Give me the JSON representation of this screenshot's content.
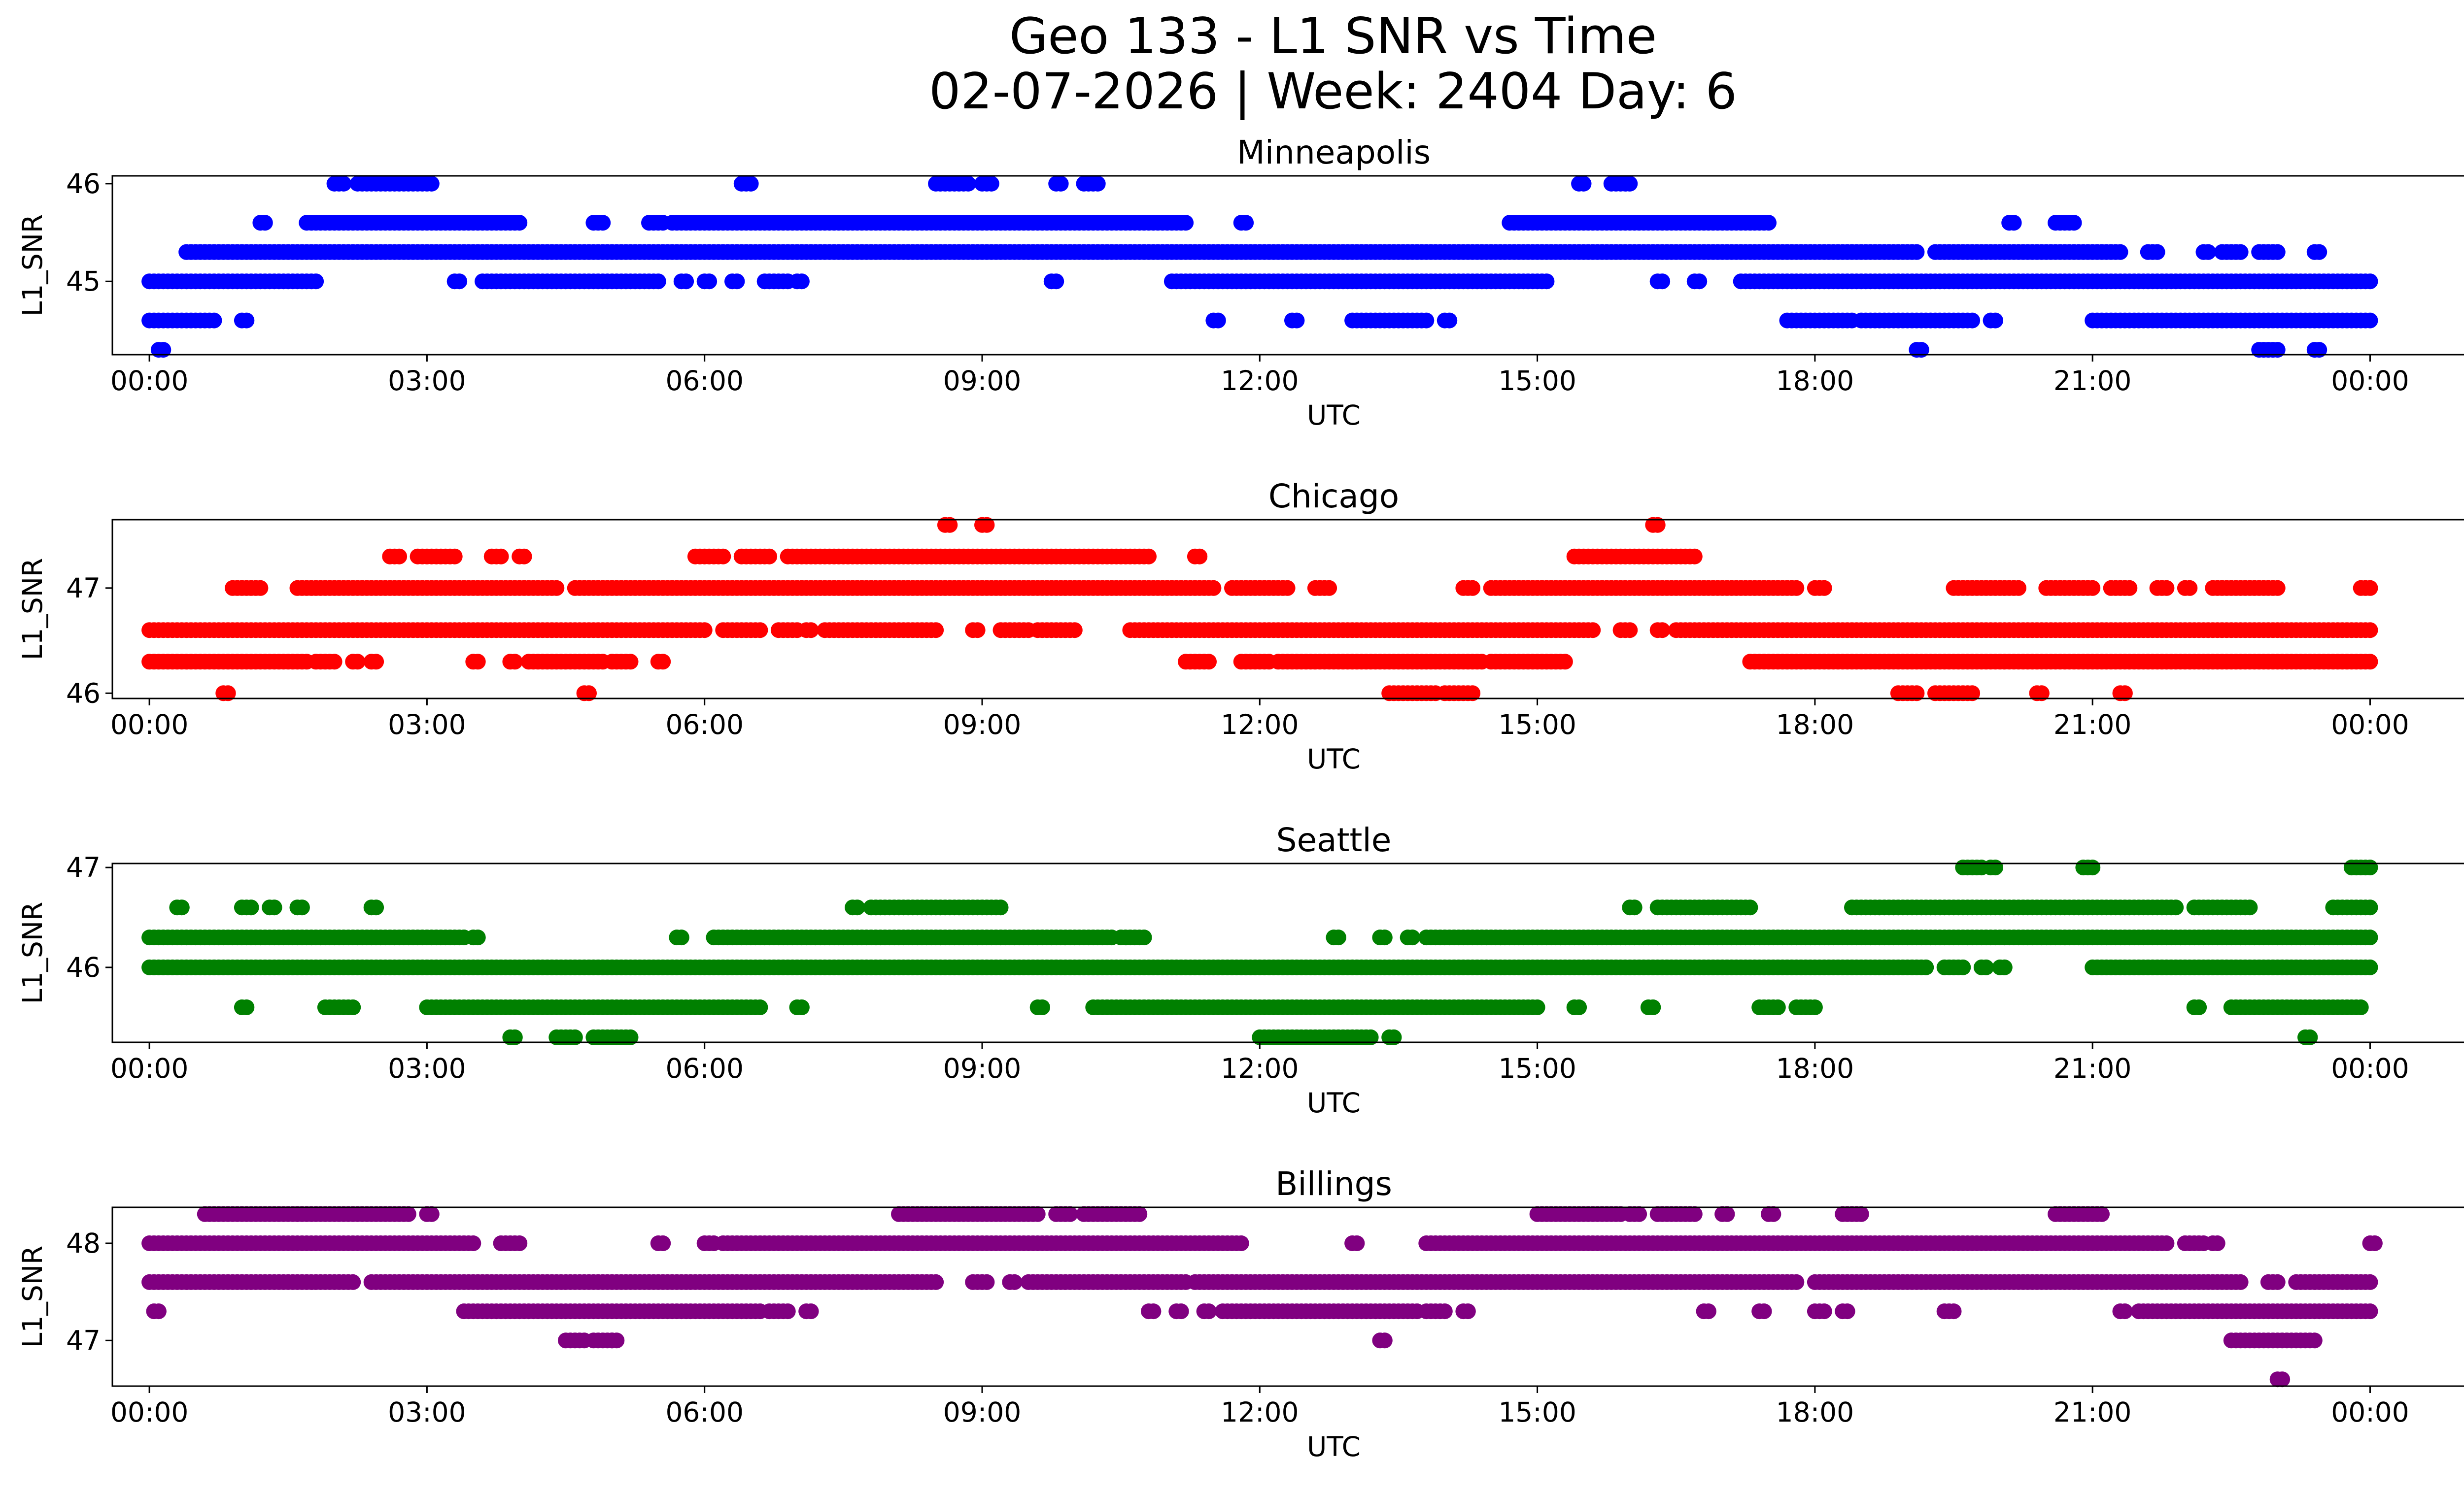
{
  "figure": {
    "title_line1": "Geo 133 - L1 SNR vs Time",
    "title_line2": "02-07-2026 | Week: 2404 Day: 6"
  },
  "x_axis": {
    "label": "UTC",
    "range_hours": [
      -0.4,
      26.0
    ],
    "ticks": [
      {
        "hour": 0,
        "label": "00:00"
      },
      {
        "hour": 3,
        "label": "03:00"
      },
      {
        "hour": 6,
        "label": "06:00"
      },
      {
        "hour": 9,
        "label": "09:00"
      },
      {
        "hour": 12,
        "label": "12:00"
      },
      {
        "hour": 15,
        "label": "15:00"
      },
      {
        "hour": 18,
        "label": "18:00"
      },
      {
        "hour": 21,
        "label": "21:00"
      },
      {
        "hour": 24,
        "label": "00:00"
      }
    ]
  },
  "chart_data": [
    {
      "type": "scatter",
      "title": "Minneapolis",
      "color": "#0000ff",
      "xlabel": "UTC",
      "ylabel": "L1_SNR",
      "ylim": [
        44.25,
        46.08
      ],
      "yticks": [
        {
          "value": 45,
          "label": "45"
        },
        {
          "value": 46,
          "label": "46"
        }
      ],
      "levels": [
        {
          "y": 46.0,
          "segments": [
            [
              2.0,
              2.1
            ],
            [
              2.25,
              3.05
            ],
            [
              6.4,
              6.5
            ],
            [
              8.5,
              8.85
            ],
            [
              9.0,
              9.1
            ],
            [
              9.8,
              9.85
            ],
            [
              10.1,
              10.25
            ],
            [
              15.45,
              15.5
            ],
            [
              15.8,
              16.0
            ]
          ]
        },
        {
          "y": 45.6,
          "segments": [
            [
              1.2,
              1.25
            ],
            [
              1.7,
              4.0
            ],
            [
              4.8,
              4.9
            ],
            [
              5.4,
              5.55
            ],
            [
              5.65,
              11.2
            ],
            [
              11.8,
              11.85
            ],
            [
              14.7,
              17.5
            ],
            [
              20.1,
              20.15
            ],
            [
              20.6,
              20.8
            ]
          ]
        },
        {
          "y": 45.3,
          "segments": [
            [
              0.4,
              19.1
            ],
            [
              19.3,
              21.3
            ],
            [
              21.6,
              21.7
            ],
            [
              22.2,
              22.25
            ],
            [
              22.4,
              22.6
            ],
            [
              22.8,
              23.0
            ],
            [
              23.4,
              23.45
            ]
          ]
        },
        {
          "y": 45.0,
          "segments": [
            [
              0.0,
              1.8
            ],
            [
              3.3,
              3.35
            ],
            [
              3.6,
              5.5
            ],
            [
              5.75,
              5.8
            ],
            [
              6.0,
              6.05
            ],
            [
              6.3,
              6.35
            ],
            [
              6.65,
              6.9
            ],
            [
              7.0,
              7.05
            ],
            [
              9.75,
              9.8
            ],
            [
              11.05,
              15.1
            ],
            [
              16.3,
              16.35
            ],
            [
              16.7,
              16.75
            ],
            [
              17.2,
              24.0
            ]
          ]
        },
        {
          "y": 44.6,
          "segments": [
            [
              0.0,
              0.7
            ],
            [
              1.0,
              1.05
            ],
            [
              11.5,
              11.55
            ],
            [
              12.35,
              12.4
            ],
            [
              13.0,
              13.8
            ],
            [
              14.0,
              14.05
            ],
            [
              17.7,
              18.4
            ],
            [
              18.5,
              19.7
            ],
            [
              19.9,
              19.95
            ],
            [
              21.0,
              24.0
            ]
          ]
        },
        {
          "y": 44.3,
          "segments": [
            [
              0.1,
              0.15
            ],
            [
              19.1,
              19.15
            ],
            [
              22.8,
              23.0
            ],
            [
              23.4,
              23.45
            ]
          ]
        }
      ]
    },
    {
      "type": "scatter",
      "title": "Chicago",
      "color": "#ff0000",
      "xlabel": "UTC",
      "ylabel": "L1_SNR",
      "ylim": [
        45.95,
        47.65
      ],
      "yticks": [
        {
          "value": 46,
          "label": "46"
        },
        {
          "value": 47,
          "label": "47"
        }
      ],
      "levels": [
        {
          "y": 47.6,
          "segments": [
            [
              8.6,
              8.65
            ],
            [
              9.0,
              9.05
            ],
            [
              16.25,
              16.3
            ]
          ]
        },
        {
          "y": 47.3,
          "segments": [
            [
              2.6,
              2.7
            ],
            [
              2.9,
              3.3
            ],
            [
              3.7,
              3.8
            ],
            [
              4.0,
              4.05
            ],
            [
              5.9,
              6.2
            ],
            [
              6.4,
              6.7
            ],
            [
              6.9,
              10.8
            ],
            [
              11.3,
              11.35
            ],
            [
              15.4,
              16.7
            ]
          ]
        },
        {
          "y": 47.0,
          "segments": [
            [
              0.9,
              1.2
            ],
            [
              1.6,
              4.4
            ],
            [
              4.6,
              11.5
            ],
            [
              11.7,
              12.3
            ],
            [
              12.6,
              12.75
            ],
            [
              14.2,
              14.3
            ],
            [
              14.5,
              17.8
            ],
            [
              18.0,
              18.1
            ],
            [
              19.5,
              20.2
            ],
            [
              20.5,
              21.0
            ],
            [
              21.2,
              21.4
            ],
            [
              21.7,
              21.8
            ],
            [
              22.0,
              22.05
            ],
            [
              22.3,
              23.0
            ],
            [
              23.9,
              24.0
            ]
          ]
        },
        {
          "y": 46.6,
          "segments": [
            [
              0.0,
              6.0
            ],
            [
              6.2,
              6.6
            ],
            [
              6.8,
              7.0
            ],
            [
              7.1,
              7.15
            ],
            [
              7.3,
              8.5
            ],
            [
              8.9,
              8.95
            ],
            [
              9.2,
              9.5
            ],
            [
              9.6,
              10.0
            ],
            [
              10.6,
              15.6
            ],
            [
              15.9,
              16.0
            ],
            [
              16.3,
              16.35
            ],
            [
              16.5,
              24.0
            ]
          ]
        },
        {
          "y": 46.3,
          "segments": [
            [
              0.0,
              1.7
            ],
            [
              1.8,
              2.0
            ],
            [
              2.2,
              2.25
            ],
            [
              2.4,
              2.45
            ],
            [
              3.5,
              3.55
            ],
            [
              3.9,
              3.95
            ],
            [
              4.1,
              4.9
            ],
            [
              5.0,
              5.2
            ],
            [
              5.5,
              5.55
            ],
            [
              11.2,
              11.45
            ],
            [
              11.8,
              12.1
            ],
            [
              12.2,
              14.4
            ],
            [
              14.5,
              15.3
            ],
            [
              17.3,
              24.0
            ]
          ]
        },
        {
          "y": 46.0,
          "segments": [
            [
              0.8,
              0.85
            ],
            [
              4.7,
              4.75
            ],
            [
              13.4,
              13.9
            ],
            [
              14.0,
              14.3
            ],
            [
              18.9,
              19.1
            ],
            [
              19.3,
              19.7
            ],
            [
              20.4,
              20.45
            ],
            [
              21.3,
              21.35
            ]
          ]
        }
      ]
    },
    {
      "type": "scatter",
      "title": "Seattle",
      "color": "#008000",
      "xlabel": "UTC",
      "ylabel": "L1_SNR",
      "ylim": [
        45.25,
        47.04
      ],
      "yticks": [
        {
          "value": 46,
          "label": "46"
        },
        {
          "value": 47,
          "label": "47"
        }
      ],
      "levels": [
        {
          "y": 47.0,
          "segments": [
            [
              19.6,
              19.8
            ],
            [
              19.9,
              19.95
            ],
            [
              20.9,
              21.0
            ],
            [
              23.8,
              24.0
            ]
          ]
        },
        {
          "y": 46.6,
          "segments": [
            [
              0.3,
              0.35
            ],
            [
              1.0,
              1.1
            ],
            [
              1.3,
              1.35
            ],
            [
              1.6,
              1.65
            ],
            [
              2.4,
              2.45
            ],
            [
              7.6,
              7.65
            ],
            [
              7.8,
              9.2
            ],
            [
              16.0,
              16.05
            ],
            [
              16.3,
              17.3
            ],
            [
              18.4,
              21.9
            ],
            [
              22.1,
              22.7
            ],
            [
              23.6,
              24.0
            ]
          ]
        },
        {
          "y": 46.3,
          "segments": [
            [
              0.0,
              3.4
            ],
            [
              3.5,
              3.55
            ],
            [
              5.7,
              5.75
            ],
            [
              6.1,
              10.4
            ],
            [
              10.5,
              10.75
            ],
            [
              12.8,
              12.85
            ],
            [
              13.3,
              13.35
            ],
            [
              13.6,
              13.65
            ],
            [
              13.8,
              24.0
            ]
          ]
        },
        {
          "y": 46.0,
          "segments": [
            [
              0.0,
              19.2
            ],
            [
              19.4,
              19.6
            ],
            [
              19.8,
              19.85
            ],
            [
              20.0,
              20.05
            ],
            [
              21.0,
              24.0
            ]
          ]
        },
        {
          "y": 45.6,
          "segments": [
            [
              1.0,
              1.05
            ],
            [
              1.9,
              2.2
            ],
            [
              3.0,
              6.6
            ],
            [
              7.0,
              7.05
            ],
            [
              9.6,
              9.65
            ],
            [
              10.2,
              15.0
            ],
            [
              15.4,
              15.45
            ],
            [
              16.2,
              16.25
            ],
            [
              17.4,
              17.6
            ],
            [
              17.8,
              18.0
            ],
            [
              22.1,
              22.15
            ],
            [
              22.5,
              23.9
            ]
          ]
        },
        {
          "y": 45.3,
          "segments": [
            [
              3.9,
              3.95
            ],
            [
              4.4,
              4.6
            ],
            [
              4.8,
              5.2
            ],
            [
              12.0,
              13.2
            ],
            [
              13.4,
              13.45
            ],
            [
              23.3,
              23.35
            ]
          ]
        }
      ]
    },
    {
      "type": "scatter",
      "title": "Billings",
      "color": "#800080",
      "xlabel": "UTC",
      "ylabel": "L1_SNR",
      "ylim": [
        46.53,
        48.37
      ],
      "yticks": [
        {
          "value": 47,
          "label": "47"
        },
        {
          "value": 48,
          "label": "48"
        }
      ],
      "levels": [
        {
          "y": 48.3,
          "segments": [
            [
              0.6,
              1.6
            ],
            [
              1.6,
              2.8
            ],
            [
              3.0,
              3.05
            ],
            [
              8.1,
              9.6
            ],
            [
              9.8,
              9.95
            ],
            [
              10.1,
              10.7
            ],
            [
              15.0,
              15.9
            ],
            [
              16.0,
              16.1
            ],
            [
              16.3,
              16.7
            ],
            [
              17.0,
              17.05
            ],
            [
              17.5,
              17.55
            ],
            [
              18.3,
              18.5
            ],
            [
              20.6,
              21.1
            ]
          ]
        },
        {
          "y": 48.0,
          "segments": [
            [
              0.0,
              3.5
            ],
            [
              3.8,
              4.0
            ],
            [
              5.5,
              5.55
            ],
            [
              6.0,
              6.1
            ],
            [
              6.2,
              11.8
            ],
            [
              13.0,
              13.05
            ],
            [
              13.8,
              21.8
            ],
            [
              22.0,
              22.2
            ],
            [
              22.3,
              22.35
            ],
            [
              24.0,
              24.05
            ]
          ]
        },
        {
          "y": 47.6,
          "segments": [
            [
              0.0,
              2.2
            ],
            [
              2.4,
              8.5
            ],
            [
              8.9,
              9.05
            ],
            [
              9.3,
              9.35
            ],
            [
              9.5,
              11.2
            ],
            [
              11.3,
              17.8
            ],
            [
              18.0,
              22.6
            ],
            [
              22.9,
              23.0
            ],
            [
              23.2,
              24.0
            ]
          ]
        },
        {
          "y": 47.3,
          "segments": [
            [
              0.05,
              0.1
            ],
            [
              3.4,
              6.6
            ],
            [
              6.7,
              6.9
            ],
            [
              7.1,
              7.15
            ],
            [
              10.8,
              10.85
            ],
            [
              11.1,
              11.15
            ],
            [
              11.4,
              11.45
            ],
            [
              11.6,
              13.7
            ],
            [
              13.8,
              14.0
            ],
            [
              14.2,
              14.25
            ],
            [
              16.8,
              16.85
            ],
            [
              17.4,
              17.45
            ],
            [
              18.0,
              18.1
            ],
            [
              18.3,
              18.35
            ],
            [
              19.4,
              19.5
            ],
            [
              21.3,
              21.35
            ],
            [
              21.5,
              24.0
            ]
          ]
        },
        {
          "y": 47.0,
          "segments": [
            [
              4.5,
              4.7
            ],
            [
              4.8,
              5.0
            ],
            [
              5.0,
              5.05
            ],
            [
              13.3,
              13.35
            ],
            [
              22.5,
              23.4
            ]
          ]
        },
        {
          "y": 46.6,
          "segments": [
            [
              23.0,
              23.05
            ]
          ]
        }
      ]
    }
  ]
}
